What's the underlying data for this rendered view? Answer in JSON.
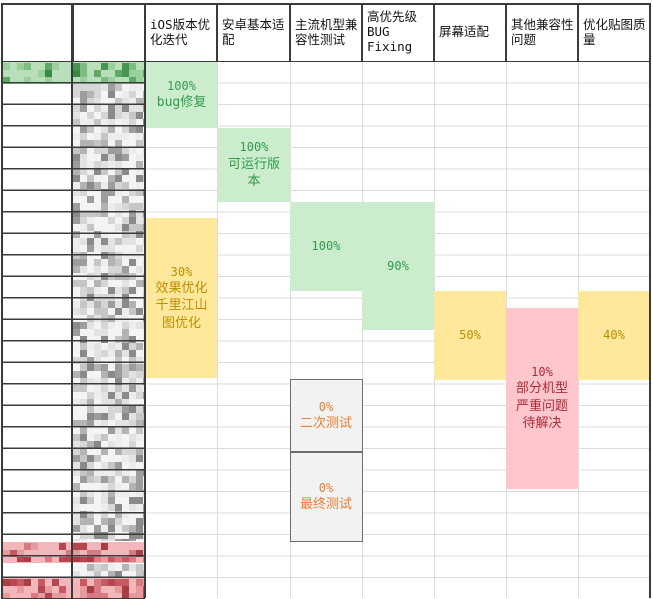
{
  "app": {
    "kind": "spreadsheet-progress-tracker"
  },
  "header": {
    "columns": [
      "",
      "",
      "iOS版本优化迭代",
      "安卓基本适配",
      "主流机型兼容性测试",
      "高优先级BUG Fixing",
      "屏幕适配",
      "其他兼容性问题",
      "优化贴图质量"
    ]
  },
  "blocks": [
    {
      "column": "iOS版本优化迭代",
      "progress": "100%",
      "note": "bug修复",
      "status": "done"
    },
    {
      "column": "安卓基本适配",
      "progress": "100%",
      "note": "可运行版本",
      "status": "done"
    },
    {
      "column": "主流机型兼容性测试",
      "progress": "100%",
      "note": "",
      "status": "done"
    },
    {
      "column": "高优先级BUG Fixing",
      "progress": "90%",
      "note": "",
      "status": "done"
    },
    {
      "column": "iOS版本优化迭代",
      "progress": "30%",
      "note": "效果优化千里江山图优化",
      "status": "in-progress"
    },
    {
      "column": "屏幕适配",
      "progress": "50%",
      "note": "",
      "status": "in-progress"
    },
    {
      "column": "优化贴图质量",
      "progress": "40%",
      "note": "",
      "status": "in-progress"
    },
    {
      "column": "其他兼容性问题",
      "progress": "10%",
      "note": "部分机型严重问题待解决",
      "status": "blocked"
    },
    {
      "column": "主流机型兼容性测试",
      "progress": "0%",
      "note": "二次测试",
      "status": "not-started"
    },
    {
      "column": "主流机型兼容性测试",
      "progress": "0%",
      "note": "最终测试",
      "status": "not-started"
    }
  ],
  "status_colors": {
    "done_bg": "#cbeccd",
    "done_text": "#359a4e",
    "in_progress_bg": "#ffe79b",
    "in_progress_text": "#bf8f00",
    "blocked_bg": "#ffc6cc",
    "blocked_text": "#ab2b38",
    "not_started_bg": "#f2f2f2",
    "not_started_text": "#ed7d31",
    "grid_dark": "#3a3a3a",
    "grid_light": "#dcdcdc",
    "row_highlight_green": "#b9dfba",
    "row_highlight_pink": "#f3b6bb"
  },
  "redacted_regions": [
    {
      "area": "first-data-row-left-columns",
      "highlight": "green"
    },
    {
      "area": "left-detail-column",
      "highlight": "gray"
    },
    {
      "area": "bottom-row-1-left-columns",
      "highlight": "pink"
    },
    {
      "area": "bottom-row-2-left-columns",
      "highlight": "pink"
    }
  ]
}
